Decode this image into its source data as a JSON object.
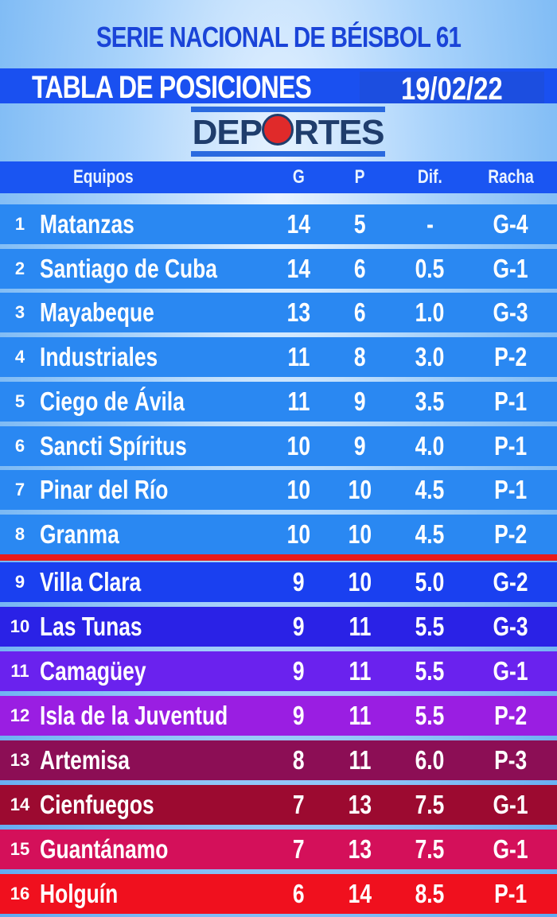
{
  "header": {
    "title": "SERIE NACIONAL DE BÉISBOL 61",
    "subtitle": "TABLA DE POSICIONES",
    "date": "19/02/22",
    "logo_text": "DEPORTES"
  },
  "columns": {
    "team": "Equipos",
    "g": "G",
    "p": "P",
    "dif": "Dif.",
    "racha": "Racha"
  },
  "colors": {
    "title": "#1a44d8",
    "header_bar": "#1a55f2",
    "playoff_divider": "#e81a1a"
  },
  "rows": [
    {
      "pos": "1",
      "team": "Matanzas",
      "g": "14",
      "p": "5",
      "dif": "-",
      "racha": "G-4",
      "color": "#2a88f2"
    },
    {
      "pos": "2",
      "team": "Santiago de Cuba",
      "g": "14",
      "p": "6",
      "dif": "0.5",
      "racha": "G-1",
      "color": "#2a88f2"
    },
    {
      "pos": "3",
      "team": "Mayabeque",
      "g": "13",
      "p": "6",
      "dif": "1.0",
      "racha": "G-3",
      "color": "#2a88f2"
    },
    {
      "pos": "4",
      "team": "Industriales",
      "g": "11",
      "p": "8",
      "dif": "3.0",
      "racha": "P-2",
      "color": "#2a88f2"
    },
    {
      "pos": "5",
      "team": "Ciego de Ávila",
      "g": "11",
      "p": "9",
      "dif": "3.5",
      "racha": "P-1",
      "color": "#2a88f2"
    },
    {
      "pos": "6",
      "team": "Sancti Spíritus",
      "g": "10",
      "p": "9",
      "dif": "4.0",
      "racha": "P-1",
      "color": "#2a88f2"
    },
    {
      "pos": "7",
      "team": "Pinar del Río",
      "g": "10",
      "p": "10",
      "dif": "4.5",
      "racha": "P-1",
      "color": "#2a88f2"
    },
    {
      "pos": "8",
      "team": "Granma",
      "g": "10",
      "p": "10",
      "dif": "4.5",
      "racha": "P-2",
      "color": "#2a88f2"
    },
    {
      "pos": "9",
      "team": "Villa Clara",
      "g": "9",
      "p": "10",
      "dif": "5.0",
      "racha": "G-2",
      "color": "#1a40f0"
    },
    {
      "pos": "10",
      "team": "Las Tunas",
      "g": "9",
      "p": "11",
      "dif": "5.5",
      "racha": "G-3",
      "color": "#2a22e6"
    },
    {
      "pos": "11",
      "team": "Camagüey",
      "g": "9",
      "p": "11",
      "dif": "5.5",
      "racha": "G-1",
      "color": "#6a22ee"
    },
    {
      "pos": "12",
      "team": "Isla de la Juventud",
      "g": "9",
      "p": "11",
      "dif": "5.5",
      "racha": "P-2",
      "color": "#9a1ee2"
    },
    {
      "pos": "13",
      "team": "Artemisa",
      "g": "8",
      "p": "11",
      "dif": "6.0",
      "racha": "P-3",
      "color": "#8c0e55"
    },
    {
      "pos": "14",
      "team": "Cienfuegos",
      "g": "7",
      "p": "13",
      "dif": "7.5",
      "racha": "G-1",
      "color": "#9c0a30"
    },
    {
      "pos": "15",
      "team": "Guantánamo",
      "g": "7",
      "p": "13",
      "dif": "7.5",
      "racha": "G-1",
      "color": "#d4105a"
    },
    {
      "pos": "16",
      "team": "Holguín",
      "g": "6",
      "p": "14",
      "dif": "8.5",
      "racha": "P-1",
      "color": "#f0101e"
    }
  ]
}
